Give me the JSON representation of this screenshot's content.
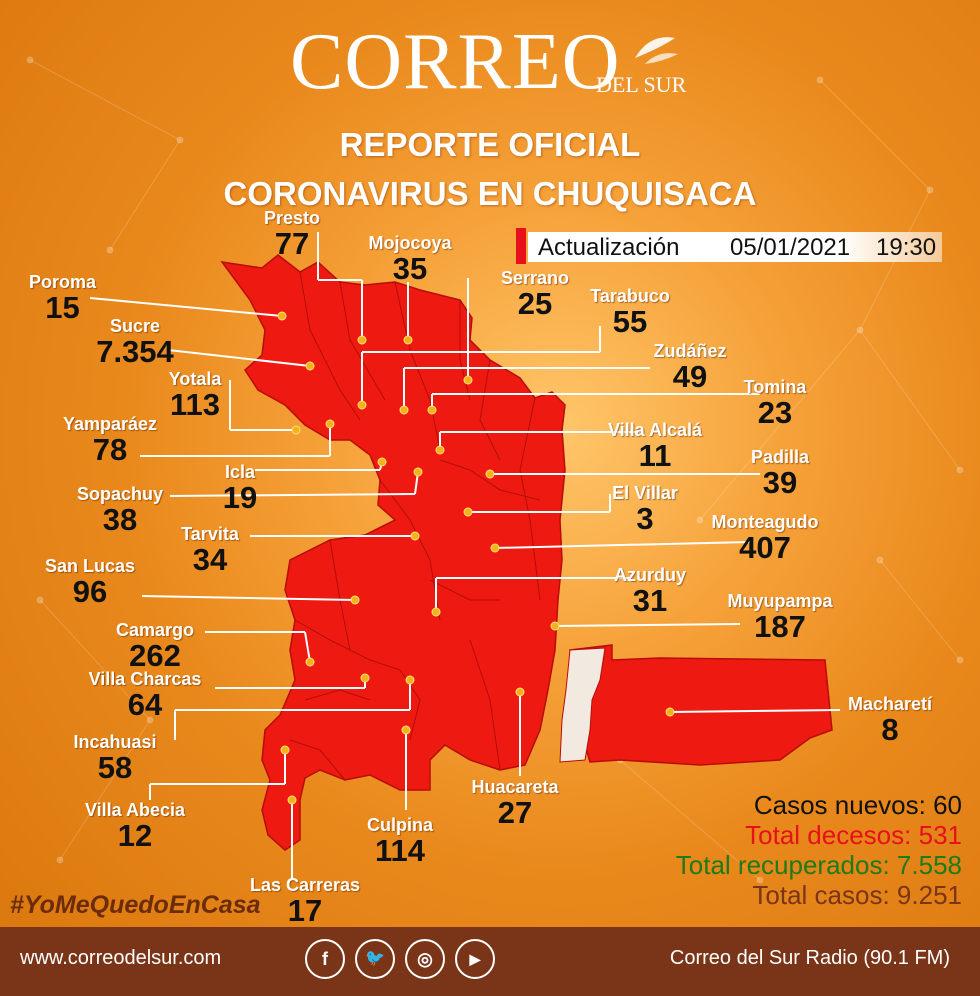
{
  "brand": {
    "name": "CORREO",
    "sub": "DEL SUR"
  },
  "title": {
    "line1": "REPORTE OFICIAL",
    "line2": "CORONAVIRUS EN CHUQUISACA"
  },
  "update": {
    "label": "Actualización",
    "date": "05/01/2021",
    "time": "19:30"
  },
  "colors": {
    "background": "#e8881a",
    "map_fill": "#ee1a12",
    "unrepresented": "#f2e9e0",
    "footer": "#7a3417",
    "accent_red": "#e8101b",
    "recovered_green": "#1f7a18",
    "total_brown": "#7a3417"
  },
  "municipalities": [
    {
      "name": "Presto",
      "value": "77"
    },
    {
      "name": "Mojocoya",
      "value": "35"
    },
    {
      "name": "Serrano",
      "value": "25"
    },
    {
      "name": "Tarabuco",
      "value": "55"
    },
    {
      "name": "Zudáñez",
      "value": "49"
    },
    {
      "name": "Tomina",
      "value": "23"
    },
    {
      "name": "Villa Alcalá",
      "value": "11"
    },
    {
      "name": "Padilla",
      "value": "39"
    },
    {
      "name": "El Villar",
      "value": "3"
    },
    {
      "name": "Monteagudo",
      "value": "407"
    },
    {
      "name": "Azurduy",
      "value": "31"
    },
    {
      "name": "Muyupampa",
      "value": "187"
    },
    {
      "name": "Macharetí",
      "value": "8"
    },
    {
      "name": "Huacareta",
      "value": "27"
    },
    {
      "name": "Culpina",
      "value": "114"
    },
    {
      "name": "Las Carreras",
      "value": "17"
    },
    {
      "name": "Villa Abecia",
      "value": "12"
    },
    {
      "name": "Incahuasi",
      "value": "58"
    },
    {
      "name": "Villa Charcas",
      "value": "64"
    },
    {
      "name": "Camargo",
      "value": "262"
    },
    {
      "name": "San Lucas",
      "value": "96"
    },
    {
      "name": "Tarvita",
      "value": "34"
    },
    {
      "name": "Sopachuy",
      "value": "38"
    },
    {
      "name": "Icla",
      "value": "19"
    },
    {
      "name": "Yamparáez",
      "value": "78"
    },
    {
      "name": "Yotala",
      "value": "113"
    },
    {
      "name": "Sucre",
      "value": "7.354"
    },
    {
      "name": "Poroma",
      "value": "15"
    }
  ],
  "stats": {
    "new_label": "Casos nuevos:",
    "new_value": "60",
    "deaths_label": "Total decesos:",
    "deaths_value": "531",
    "recovered_label": "Total recuperados:",
    "recovered_value": "7.558",
    "total_label": "Total casos:",
    "total_value": "9.251"
  },
  "hashtag": "#YoMeQuedoEnCasa",
  "footer": {
    "url": "www.correodelsur.com",
    "social": [
      {
        "icon": "facebook-icon",
        "glyph": "f"
      },
      {
        "icon": "twitter-icon",
        "glyph": "🐦"
      },
      {
        "icon": "instagram-icon",
        "glyph": "◎"
      },
      {
        "icon": "youtube-icon",
        "glyph": "▶"
      }
    ],
    "radio": "Correo del Sur Radio (90.1 FM)"
  }
}
